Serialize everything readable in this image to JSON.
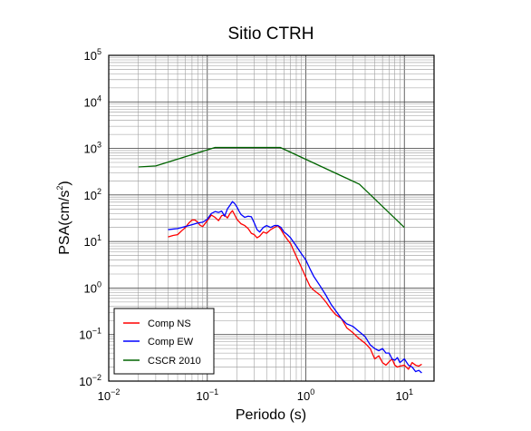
{
  "chart_data": {
    "type": "line",
    "title": "Sitio CTRH",
    "xlabel": "Periodo (s)",
    "ylabel_base": "PSA(cm/s",
    "ylabel_sup": "2",
    "ylabel_end": ")",
    "x_scale": "log",
    "y_scale": "log",
    "xlim": [
      0.01,
      20
    ],
    "ylim": [
      0.01,
      100000
    ],
    "grid": true,
    "legend_position": "bottom-left",
    "x_ticks": [
      {
        "base": "10",
        "exp": "−2"
      },
      {
        "base": "10",
        "exp": "−1"
      },
      {
        "base": "10",
        "exp": "0"
      },
      {
        "base": "10",
        "exp": "1"
      }
    ],
    "y_ticks": [
      {
        "base": "10",
        "exp": "−2"
      },
      {
        "base": "10",
        "exp": "−1"
      },
      {
        "base": "10",
        "exp": "0"
      },
      {
        "base": "10",
        "exp": "1"
      },
      {
        "base": "10",
        "exp": "2"
      },
      {
        "base": "10",
        "exp": "3"
      },
      {
        "base": "10",
        "exp": "4"
      },
      {
        "base": "10",
        "exp": "5"
      }
    ],
    "series": [
      {
        "name": "Comp NS",
        "color": "#ff0000",
        "x": [
          0.04,
          0.045,
          0.05,
          0.055,
          0.06,
          0.065,
          0.07,
          0.075,
          0.08,
          0.085,
          0.09,
          0.1,
          0.11,
          0.12,
          0.13,
          0.14,
          0.15,
          0.16,
          0.17,
          0.18,
          0.19,
          0.2,
          0.22,
          0.24,
          0.26,
          0.28,
          0.3,
          0.32,
          0.34,
          0.37,
          0.4,
          0.44,
          0.48,
          0.52,
          0.56,
          0.6,
          0.65,
          0.7,
          0.8,
          0.9,
          1.0,
          1.1,
          1.2,
          1.4,
          1.6,
          1.8,
          2.0,
          2.3,
          2.6,
          3.0,
          3.4,
          4.0,
          4.5,
          5.0,
          5.5,
          6.0,
          6.5,
          7.0,
          7.5,
          8.0,
          8.5,
          9.0,
          10.0,
          11.0,
          12.0,
          13.0,
          14.0,
          15.0
        ],
        "y": [
          12.5,
          13.5,
          14,
          17,
          20,
          25,
          29,
          29,
          26,
          22,
          21,
          28,
          37,
          33,
          28,
          36,
          37,
          32,
          40,
          46,
          37,
          30,
          24,
          22,
          19,
          15,
          14,
          12,
          13,
          16,
          15,
          18,
          20,
          22,
          18,
          14,
          11,
          9,
          4.8,
          2.8,
          1.7,
          1.1,
          0.9,
          0.7,
          0.5,
          0.35,
          0.27,
          0.22,
          0.14,
          0.11,
          0.085,
          0.065,
          0.05,
          0.03,
          0.035,
          0.025,
          0.022,
          0.026,
          0.03,
          0.022,
          0.02,
          0.021,
          0.022,
          0.018,
          0.025,
          0.022,
          0.021,
          0.023
        ]
      },
      {
        "name": "Comp EW",
        "color": "#0000ff",
        "x": [
          0.04,
          0.045,
          0.05,
          0.06,
          0.07,
          0.08,
          0.09,
          0.1,
          0.11,
          0.12,
          0.13,
          0.14,
          0.15,
          0.16,
          0.17,
          0.18,
          0.19,
          0.2,
          0.21,
          0.22,
          0.24,
          0.26,
          0.28,
          0.3,
          0.32,
          0.34,
          0.37,
          0.4,
          0.44,
          0.48,
          0.52,
          0.56,
          0.6,
          0.65,
          0.7,
          0.8,
          0.9,
          1.0,
          1.1,
          1.2,
          1.4,
          1.6,
          1.8,
          2.0,
          2.3,
          2.6,
          3.0,
          3.4,
          4.0,
          4.5,
          5.0,
          5.5,
          6.0,
          6.5,
          7.0,
          7.5,
          8.0,
          8.5,
          9.0,
          10.0,
          11.0,
          12.0,
          13.0,
          14.0,
          15.0
        ],
        "y": [
          18,
          18.5,
          19,
          21,
          23,
          25,
          26,
          30,
          40,
          44,
          42,
          45,
          35,
          50,
          60,
          72,
          65,
          55,
          45,
          38,
          33,
          35,
          34,
          25,
          18,
          16,
          20,
          22,
          20,
          22,
          22,
          20,
          16,
          14,
          12,
          8,
          5.5,
          4,
          2.6,
          1.8,
          1.1,
          0.7,
          0.45,
          0.33,
          0.22,
          0.17,
          0.15,
          0.12,
          0.09,
          0.06,
          0.05,
          0.045,
          0.05,
          0.04,
          0.04,
          0.03,
          0.028,
          0.032,
          0.025,
          0.03,
          0.022,
          0.02,
          0.016,
          0.017,
          0.015
        ]
      },
      {
        "name": "CSCR 2010",
        "color": "#006400",
        "x": [
          0.02,
          0.03,
          0.12,
          0.55,
          3.5,
          10.0
        ],
        "y": [
          400,
          420,
          1050,
          1050,
          170,
          20
        ]
      }
    ]
  }
}
